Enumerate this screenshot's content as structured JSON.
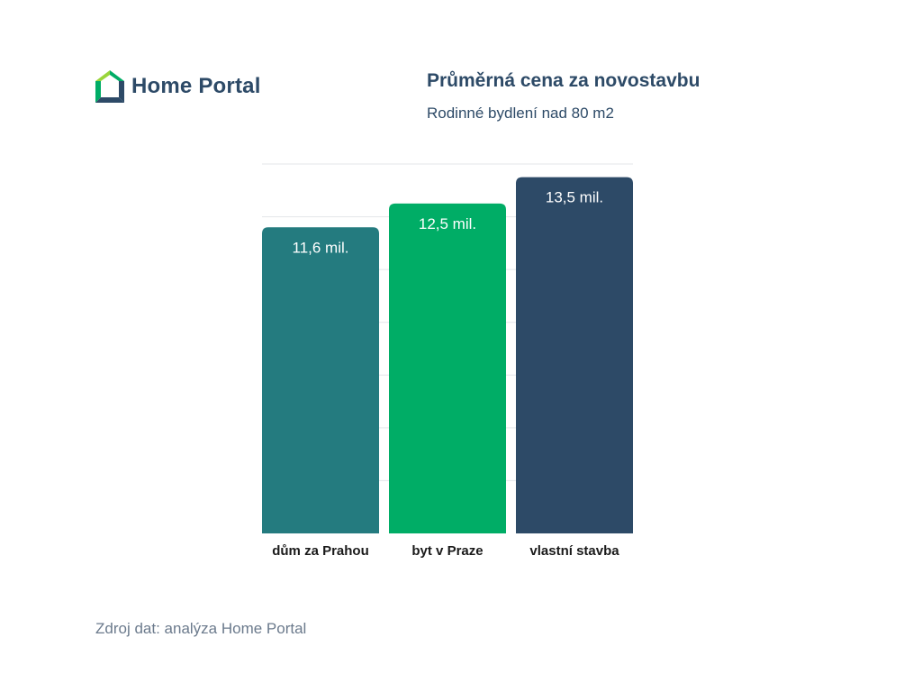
{
  "brand": {
    "name": "Home Portal",
    "logo_icon": "house-logo-icon",
    "logo_colors": [
      "#9ad53b",
      "#00ad66",
      "#2d4a67"
    ]
  },
  "chart_data": {
    "type": "bar",
    "title": "Průměrná cena za novostavbu",
    "subtitle": "Rodinné bydlení nad 80 m2",
    "categories": [
      "dům za Prahou",
      "byt v Praze",
      "vlastní stavba"
    ],
    "values": [
      11.6,
      12.5,
      13.5
    ],
    "value_labels": [
      "11,6 mil.",
      "12,5 mil.",
      "13,5 mil."
    ],
    "colors": [
      "#247b7f",
      "#00ad66",
      "#2d4a67"
    ],
    "ylim": [
      0,
      14
    ],
    "grid": true,
    "legend": "none",
    "xlabel": "",
    "ylabel": ""
  },
  "footer": {
    "source": "Zdroj dat: analýza Home Portal"
  }
}
